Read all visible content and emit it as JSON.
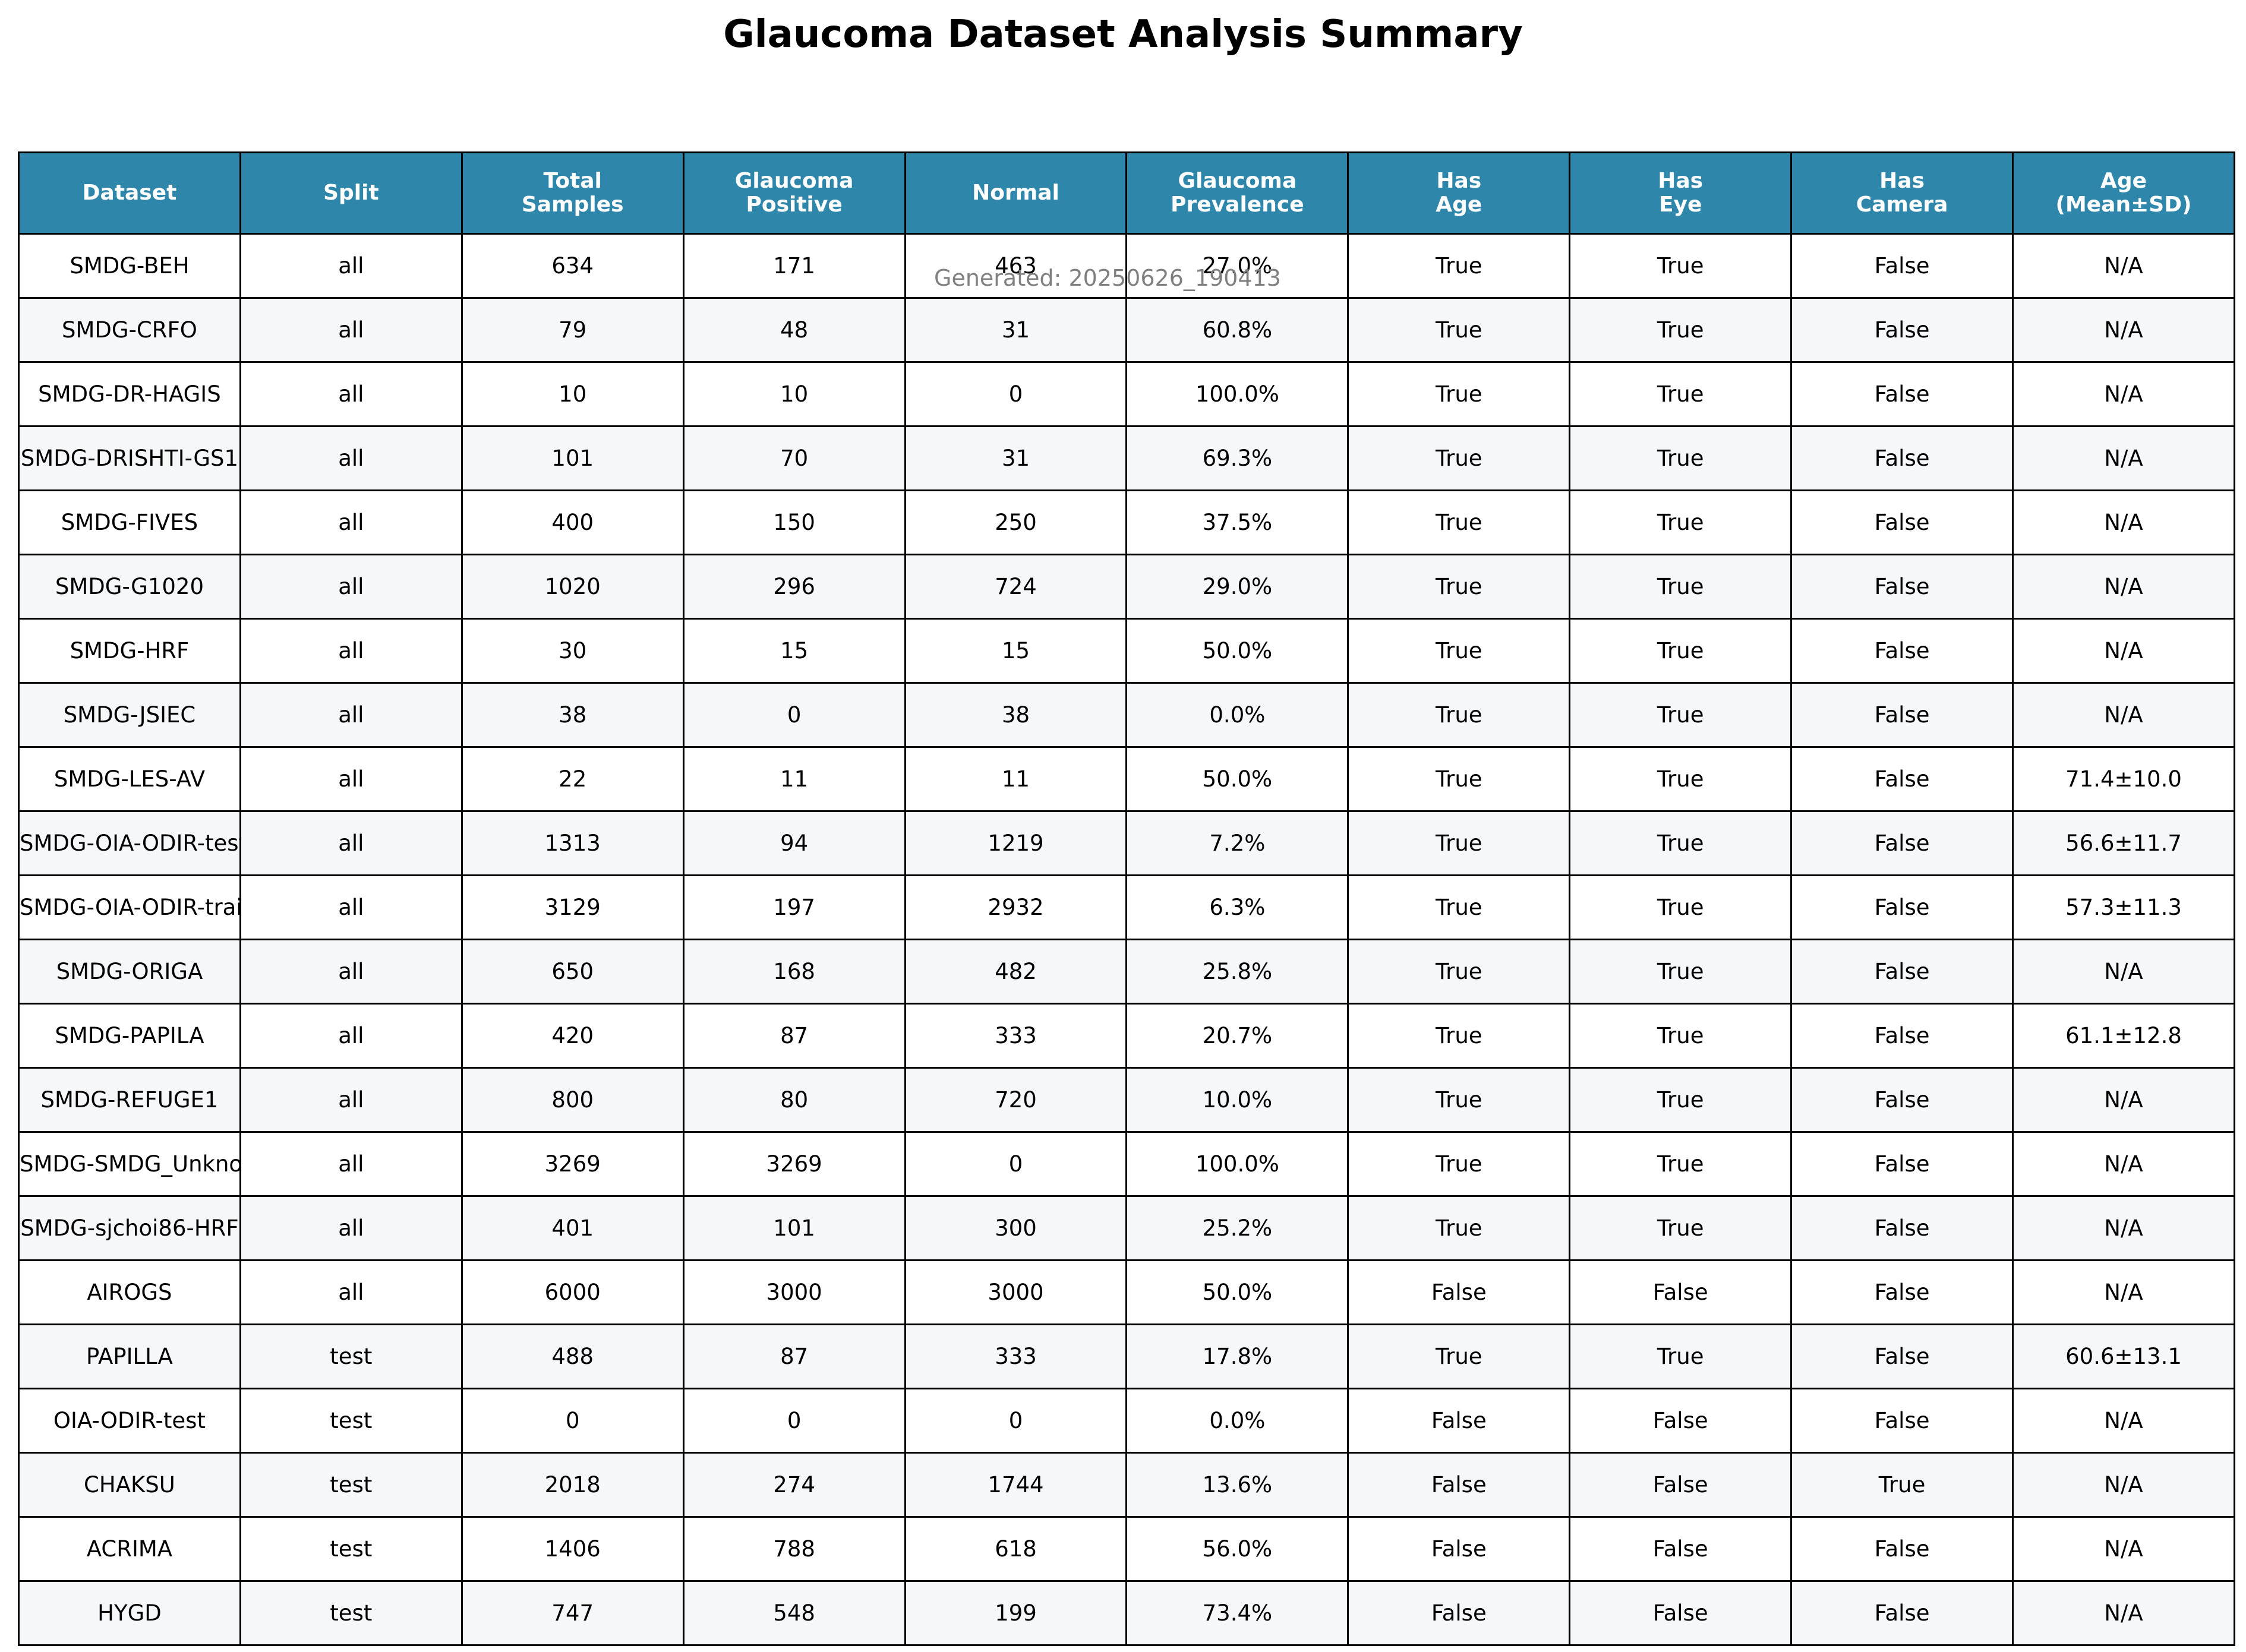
{
  "chart_data": {
    "type": "table",
    "title": "Glaucoma Dataset Analysis Summary",
    "subtitle": "Generated: 20250626_190413",
    "header_color": "#2e86ab",
    "columns": [
      [
        "Dataset"
      ],
      [
        "Split"
      ],
      [
        "Total",
        "Samples"
      ],
      [
        "Glaucoma",
        "Positive"
      ],
      [
        "Normal"
      ],
      [
        "Glaucoma",
        "Prevalence"
      ],
      [
        "Has",
        "Age"
      ],
      [
        "Has",
        "Eye"
      ],
      [
        "Has",
        "Camera"
      ],
      [
        "Age",
        "(Mean±SD)"
      ]
    ],
    "rows": [
      [
        "SMDG-BEH",
        "all",
        "634",
        "171",
        "463",
        "27.0%",
        "True",
        "True",
        "False",
        "N/A"
      ],
      [
        "SMDG-CRFO",
        "all",
        "79",
        "48",
        "31",
        "60.8%",
        "True",
        "True",
        "False",
        "N/A"
      ],
      [
        "SMDG-DR-HAGIS",
        "all",
        "10",
        "10",
        "0",
        "100.0%",
        "True",
        "True",
        "False",
        "N/A"
      ],
      [
        "SMDG-DRISHTI-GS1",
        "all",
        "101",
        "70",
        "31",
        "69.3%",
        "True",
        "True",
        "False",
        "N/A"
      ],
      [
        "SMDG-FIVES",
        "all",
        "400",
        "150",
        "250",
        "37.5%",
        "True",
        "True",
        "False",
        "N/A"
      ],
      [
        "SMDG-G1020",
        "all",
        "1020",
        "296",
        "724",
        "29.0%",
        "True",
        "True",
        "False",
        "N/A"
      ],
      [
        "SMDG-HRF",
        "all",
        "30",
        "15",
        "15",
        "50.0%",
        "True",
        "True",
        "False",
        "N/A"
      ],
      [
        "SMDG-JSIEC",
        "all",
        "38",
        "0",
        "38",
        "0.0%",
        "True",
        "True",
        "False",
        "N/A"
      ],
      [
        "SMDG-LES-AV",
        "all",
        "22",
        "11",
        "11",
        "50.0%",
        "True",
        "True",
        "False",
        "71.4±10.0"
      ],
      [
        "SMDG-OIA-ODIR-test",
        "all",
        "1313",
        "94",
        "1219",
        "7.2%",
        "True",
        "True",
        "False",
        "56.6±11.7"
      ],
      [
        "SMDG-OIA-ODIR-train",
        "all",
        "3129",
        "197",
        "2932",
        "6.3%",
        "True",
        "True",
        "False",
        "57.3±11.3"
      ],
      [
        "SMDG-ORIGA",
        "all",
        "650",
        "168",
        "482",
        "25.8%",
        "True",
        "True",
        "False",
        "N/A"
      ],
      [
        "SMDG-PAPILA",
        "all",
        "420",
        "87",
        "333",
        "20.7%",
        "True",
        "True",
        "False",
        "61.1±12.8"
      ],
      [
        "SMDG-REFUGE1",
        "all",
        "800",
        "80",
        "720",
        "10.0%",
        "True",
        "True",
        "False",
        "N/A"
      ],
      [
        "SMDG-SMDG_Unknown",
        "all",
        "3269",
        "3269",
        "0",
        "100.0%",
        "True",
        "True",
        "False",
        "N/A"
      ],
      [
        "SMDG-sjchoi86-HRF",
        "all",
        "401",
        "101",
        "300",
        "25.2%",
        "True",
        "True",
        "False",
        "N/A"
      ],
      [
        "AIROGS",
        "all",
        "6000",
        "3000",
        "3000",
        "50.0%",
        "False",
        "False",
        "False",
        "N/A"
      ],
      [
        "PAPILLA",
        "test",
        "488",
        "87",
        "333",
        "17.8%",
        "True",
        "True",
        "False",
        "60.6±13.1"
      ],
      [
        "OIA-ODIR-test",
        "test",
        "0",
        "0",
        "0",
        "0.0%",
        "False",
        "False",
        "False",
        "N/A"
      ],
      [
        "CHAKSU",
        "test",
        "2018",
        "274",
        "1744",
        "13.6%",
        "False",
        "False",
        "True",
        "N/A"
      ],
      [
        "ACRIMA",
        "test",
        "1406",
        "788",
        "618",
        "56.0%",
        "False",
        "False",
        "False",
        "N/A"
      ],
      [
        "HYGD",
        "test",
        "747",
        "548",
        "199",
        "73.4%",
        "False",
        "False",
        "False",
        "N/A"
      ]
    ]
  }
}
